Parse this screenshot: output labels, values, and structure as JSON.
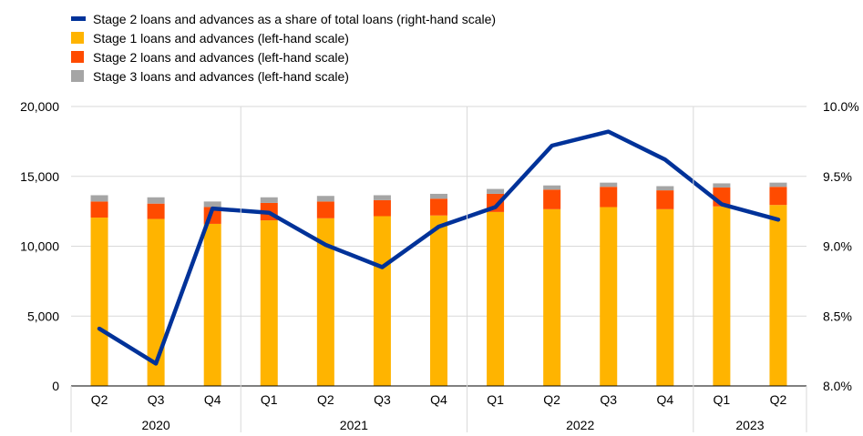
{
  "chart_data": {
    "type": "bar",
    "stacked": true,
    "categories": [
      "Q2",
      "Q3",
      "Q4",
      "Q1",
      "Q2",
      "Q3",
      "Q4",
      "Q1",
      "Q2",
      "Q3",
      "Q4",
      "Q1",
      "Q2"
    ],
    "year_groups": [
      {
        "label": "2020",
        "count": 3
      },
      {
        "label": "2021",
        "count": 4
      },
      {
        "label": "2022",
        "count": 4
      },
      {
        "label": "2023",
        "count": 2
      }
    ],
    "series": [
      {
        "name": "Stage 1 loans and advances (left-hand scale)",
        "axis": "left",
        "type": "bar",
        "color": "#ffb400",
        "values": [
          12050,
          11950,
          11600,
          11850,
          12000,
          12150,
          12200,
          12450,
          12650,
          12800,
          12650,
          12850,
          12950
        ]
      },
      {
        "name": "Stage 2 loans and advances (left-hand scale)",
        "axis": "left",
        "type": "bar",
        "color": "#ff4b00",
        "values": [
          1150,
          1100,
          1200,
          1250,
          1200,
          1150,
          1200,
          1300,
          1400,
          1450,
          1350,
          1350,
          1300
        ]
      },
      {
        "name": "Stage 3 loans and advances (left-hand scale)",
        "axis": "left",
        "type": "bar",
        "color": "#a5a5a5",
        "values": [
          450,
          450,
          400,
          400,
          400,
          350,
          350,
          350,
          300,
          300,
          300,
          300,
          300
        ]
      },
      {
        "name": "Stage 2 loans and advances as a share of total loans (right-hand scale)",
        "axis": "right",
        "type": "line",
        "color": "#003299",
        "values": [
          8.41,
          8.16,
          9.27,
          9.24,
          9.01,
          8.85,
          9.14,
          9.28,
          9.72,
          9.82,
          9.62,
          9.3,
          9.19
        ]
      }
    ],
    "legend_order": [
      3,
      0,
      1,
      2
    ],
    "left_axis": {
      "ylim": [
        0,
        20000
      ],
      "ticks": [
        "0",
        "5,000",
        "10,000",
        "15,000",
        "20,000"
      ]
    },
    "right_axis": {
      "ylim": [
        8.0,
        10.0
      ],
      "ticks": [
        "8.0%",
        "8.5%",
        "9.0%",
        "9.5%",
        "10.0%"
      ]
    },
    "grid": true,
    "legend_position": "top-left"
  }
}
